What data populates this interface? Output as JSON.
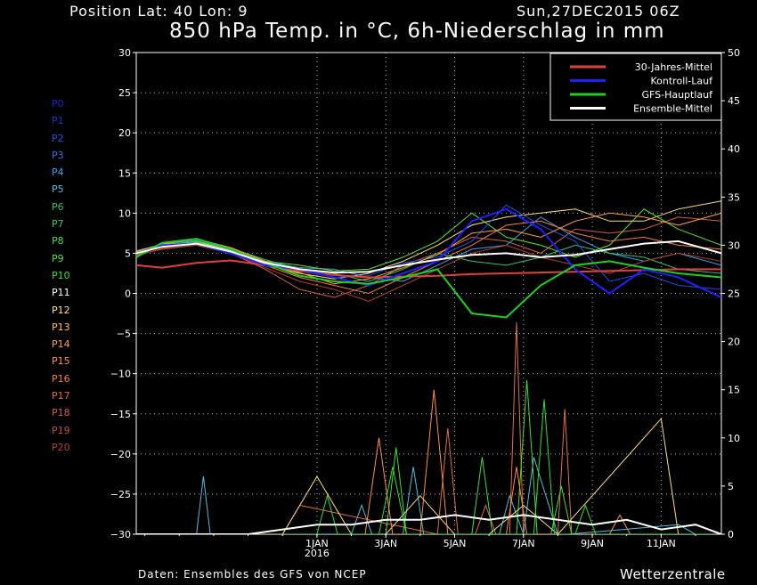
{
  "header": {
    "position_label": "Position  Lat: 40 Lon: 9",
    "date_label": "Sun,27DEC2015 06Z",
    "title": "850 hPa Temp. in °C, 6h-Niederschlag in mm"
  },
  "footer": {
    "source": "Daten: Ensembles des GFS von NCEP",
    "brand": "Wetterzentrale"
  },
  "members": [
    {
      "label": "P0",
      "color": "#2020d0"
    },
    {
      "label": "P1",
      "color": "#2030d8"
    },
    {
      "label": "P2",
      "color": "#2050e0"
    },
    {
      "label": "P3",
      "color": "#3070e0"
    },
    {
      "label": "P4",
      "color": "#40a0e8"
    },
    {
      "label": "P5",
      "color": "#50c0e0"
    },
    {
      "label": "P6",
      "color": "#30c070"
    },
    {
      "label": "P7",
      "color": "#30d060"
    },
    {
      "label": "P8",
      "color": "#40e040"
    },
    {
      "label": "P9",
      "color": "#60e030"
    },
    {
      "label": "P10",
      "color": "#30e030"
    },
    {
      "label": "P11",
      "color": "#ffffff"
    },
    {
      "label": "P12",
      "color": "#ffe080"
    },
    {
      "label": "P13",
      "color": "#ffc060"
    },
    {
      "label": "P14",
      "color": "#ffa040"
    },
    {
      "label": "P15",
      "color": "#ff9040"
    },
    {
      "label": "P16",
      "color": "#f08040"
    },
    {
      "label": "P17",
      "color": "#e07040"
    },
    {
      "label": "P18",
      "color": "#d06040"
    },
    {
      "label": "P19",
      "color": "#c05040"
    },
    {
      "label": "P20",
      "color": "#b04030"
    }
  ],
  "chart_data": {
    "type": "line",
    "grid": true,
    "legend_position": "top-right",
    "left_axis": {
      "ylim": [
        -30,
        30
      ],
      "ticks": [
        30,
        25,
        20,
        15,
        10,
        5,
        0,
        -5,
        -10,
        -15,
        -20,
        -25,
        -30
      ]
    },
    "right_axis": {
      "ylim": [
        0,
        50
      ],
      "ticks": [
        50,
        45,
        40,
        35,
        30,
        25,
        20,
        15,
        10,
        5,
        0
      ]
    },
    "x_axis": {
      "range_days": [
        -5.25,
        11.75
      ],
      "tick_labels": [
        {
          "day": 0,
          "label": "1JAN"
        },
        {
          "day": 2,
          "label": "3JAN"
        },
        {
          "day": 4,
          "label": "5JAN"
        },
        {
          "day": 6,
          "label": "7JAN"
        },
        {
          "day": 8,
          "label": "9JAN"
        },
        {
          "day": 10,
          "label": "11JAN"
        }
      ],
      "year_label": {
        "day": 0,
        "label": "2016"
      }
    },
    "series": [
      {
        "name": "30-Jahres-Mittel",
        "color": "#e04040",
        "x": [
          -5.25,
          -4.5,
          -3.5,
          -2.5,
          -1.5,
          -0.5,
          0.5,
          1.5,
          2.5,
          3.5,
          4.5,
          5.5,
          6.5,
          7.5,
          8.5,
          9.5,
          10.5,
          11.75
        ],
        "y": [
          3.5,
          3.2,
          3.8,
          4.1,
          3.5,
          2.8,
          2.3,
          2.0,
          2.1,
          2.2,
          2.4,
          2.5,
          2.6,
          2.7,
          2.8,
          2.9,
          3.0,
          3.0
        ]
      },
      {
        "name": "Kontroll-Lauf",
        "color": "#2020ff",
        "x": [
          -5.25,
          -4.5,
          -3.5,
          -2.5,
          -1.5,
          -0.5,
          0.5,
          1.5,
          2.5,
          3.5,
          4.5,
          5.5,
          6.5,
          7.5,
          8.5,
          9.5,
          10.5,
          11.75
        ],
        "y": [
          5.0,
          6.0,
          6.2,
          5.0,
          3.5,
          3.0,
          2.0,
          1.0,
          2.5,
          4.0,
          9.0,
          10.5,
          8.0,
          3.0,
          0.0,
          3.0,
          2.0,
          -0.5
        ]
      },
      {
        "name": "GFS-Hauptlauf",
        "color": "#20d020",
        "x": [
          -5.25,
          -4.5,
          -3.5,
          -2.5,
          -1.5,
          -0.5,
          0.5,
          1.5,
          2.5,
          3.5,
          4.5,
          5.5,
          6.5,
          7.5,
          8.5,
          9.5,
          10.5,
          11.75
        ],
        "y": [
          4.5,
          6.3,
          6.8,
          5.5,
          3.8,
          2.2,
          1.5,
          1.2,
          2.0,
          3.0,
          -2.5,
          -3.0,
          1.0,
          3.5,
          4.0,
          3.2,
          2.5,
          2.0
        ]
      },
      {
        "name": "Ensemble-Mittel",
        "color": "#ffffff",
        "x": [
          -5.25,
          -4.5,
          -3.5,
          -2.5,
          -1.5,
          -0.5,
          0.5,
          1.5,
          2.5,
          3.5,
          4.5,
          5.5,
          6.5,
          7.5,
          8.5,
          9.5,
          10.5,
          11.75
        ],
        "y": [
          5.0,
          5.8,
          6.2,
          5.2,
          3.8,
          3.0,
          2.6,
          2.7,
          3.5,
          4.2,
          4.8,
          5.0,
          4.5,
          4.8,
          5.5,
          6.2,
          6.5,
          5.0
        ]
      }
    ],
    "ensemble_members": [
      {
        "color": "#ffe080",
        "y": [
          5.2,
          6.0,
          6.5,
          5.3,
          3.6,
          2.5,
          1.8,
          2.5,
          4.0,
          6.0,
          8.5,
          9.5,
          10.0,
          10.5,
          9.0,
          9.0,
          10.5,
          11.5
        ]
      },
      {
        "color": "#d06040",
        "y": [
          4.8,
          5.5,
          6.0,
          5.0,
          3.0,
          0.5,
          -0.5,
          1.0,
          3.5,
          5.0,
          7.0,
          6.5,
          5.0,
          8.0,
          7.5,
          8.0,
          9.5,
          9.0
        ]
      },
      {
        "color": "#40a0e8",
        "y": [
          5.0,
          6.2,
          6.6,
          5.4,
          3.9,
          3.2,
          3.0,
          2.0,
          1.5,
          3.5,
          5.5,
          6.0,
          9.5,
          7.0,
          5.0,
          4.0,
          5.0,
          3.5
        ]
      },
      {
        "color": "#60e030",
        "y": [
          5.3,
          6.1,
          6.4,
          5.2,
          4.0,
          3.5,
          2.8,
          3.0,
          4.5,
          6.5,
          10.0,
          7.0,
          6.0,
          4.5,
          6.0,
          10.5,
          8.0,
          6.0
        ]
      },
      {
        "color": "#f08040",
        "y": [
          4.9,
          5.8,
          6.3,
          5.1,
          3.5,
          2.0,
          1.0,
          0.0,
          2.0,
          4.0,
          6.0,
          8.5,
          9.0,
          7.5,
          6.5,
          7.0,
          6.0,
          5.5
        ]
      },
      {
        "color": "#30c070",
        "y": [
          5.1,
          5.9,
          6.5,
          5.6,
          4.2,
          3.0,
          2.5,
          1.5,
          3.0,
          5.0,
          4.0,
          3.5,
          4.5,
          6.0,
          5.0,
          4.5,
          3.0,
          2.5
        ]
      },
      {
        "color": "#2050e0",
        "y": [
          5.0,
          6.0,
          6.1,
          4.9,
          3.4,
          2.8,
          2.0,
          2.2,
          3.8,
          4.5,
          6.5,
          11.0,
          8.5,
          6.5,
          1.5,
          2.5,
          1.0,
          0.5
        ]
      },
      {
        "color": "#ffa040",
        "y": [
          5.2,
          6.1,
          6.8,
          5.7,
          4.0,
          2.6,
          1.2,
          1.8,
          3.2,
          4.8,
          7.5,
          8.0,
          7.0,
          9.0,
          10.0,
          9.5,
          8.5,
          10.0
        ]
      },
      {
        "color": "#b04030",
        "y": [
          4.7,
          5.6,
          6.0,
          5.0,
          3.2,
          1.5,
          0.5,
          -1.0,
          1.0,
          3.0,
          5.0,
          6.0,
          4.5,
          3.5,
          2.5,
          4.0,
          5.0,
          4.0
        ]
      }
    ],
    "precip_members": [
      {
        "color": "#50c0e0",
        "x": [
          -3.5,
          -3.3,
          -3.1,
          1.0,
          1.3,
          1.6,
          2.5,
          2.8,
          3.1,
          5.3,
          5.6,
          6.0,
          6.3,
          7.0,
          7.3,
          10.5,
          11.0,
          11.5
        ],
        "y": [
          0,
          6,
          0,
          0,
          3,
          0,
          0,
          7,
          0,
          0,
          4,
          0,
          8,
          0,
          0,
          1,
          0,
          0
        ]
      },
      {
        "color": "#e07040",
        "y": [
          0,
          0,
          3,
          0,
          11,
          0,
          0,
          3,
          0,
          0,
          22,
          0,
          0,
          13,
          0,
          0,
          0,
          0
        ],
        "x": [
          -1.5,
          -1.0,
          -0.5,
          3.5,
          3.8,
          4.1,
          4.6,
          4.9,
          5.2,
          5.6,
          5.8,
          6.0,
          7.0,
          7.2,
          7.4,
          9,
          10,
          11
        ]
      },
      {
        "color": "#40e040",
        "y": [
          0,
          0,
          9,
          0,
          0,
          8,
          0,
          0,
          16,
          0,
          0,
          5,
          0,
          0,
          0,
          0,
          0,
          0
        ],
        "x": [
          0.5,
          2.0,
          2.3,
          2.6,
          4.5,
          4.8,
          5.1,
          5.8,
          6.1,
          6.4,
          6.8,
          7.1,
          7.4,
          8,
          9,
          10,
          11,
          11.5
        ]
      },
      {
        "color": "#ffe080",
        "y": [
          0,
          0,
          6,
          0,
          0,
          4,
          0,
          0,
          3,
          0,
          12,
          0,
          0,
          0,
          0,
          0,
          0,
          0
        ],
        "x": [
          -2,
          -1,
          0,
          1,
          2,
          3,
          4,
          5,
          6,
          7,
          10.0,
          10.5,
          11.0,
          11.5,
          11.6,
          11.7,
          11.75,
          11.75
        ]
      },
      {
        "color": "#ff9040",
        "y": [
          0,
          0,
          10,
          0,
          0,
          15,
          0,
          0,
          7,
          0,
          0,
          2,
          0,
          0,
          0,
          0,
          0,
          0
        ],
        "x": [
          1.0,
          1.4,
          1.8,
          2.2,
          3.0,
          3.4,
          3.8,
          5.5,
          5.8,
          6.1,
          8.5,
          8.8,
          9.1,
          9.5,
          10,
          10.5,
          11,
          11.5
        ]
      },
      {
        "color": "#30e030",
        "y": [
          0,
          0,
          4,
          0,
          0,
          7,
          0,
          0,
          14,
          0,
          0,
          3,
          0,
          0,
          0,
          0,
          0,
          0
        ],
        "x": [
          -1,
          0,
          0.3,
          0.6,
          1.8,
          2.2,
          2.6,
          6.3,
          6.6,
          6.9,
          7.5,
          7.8,
          8.1,
          9,
          10,
          10.5,
          11,
          11.5
        ]
      }
    ],
    "precip_mean": {
      "color": "#ffffff",
      "x": [
        -5.25,
        -3.5,
        -2,
        -1,
        0,
        1,
        2,
        3,
        4,
        5,
        6,
        7,
        8,
        9,
        10,
        11,
        11.75
      ],
      "y": [
        0,
        0,
        0,
        0.5,
        1.0,
        1.0,
        1.5,
        1.5,
        2.0,
        1.5,
        2.0,
        1.5,
        1.0,
        1.5,
        0.5,
        1.0,
        0
      ]
    }
  }
}
